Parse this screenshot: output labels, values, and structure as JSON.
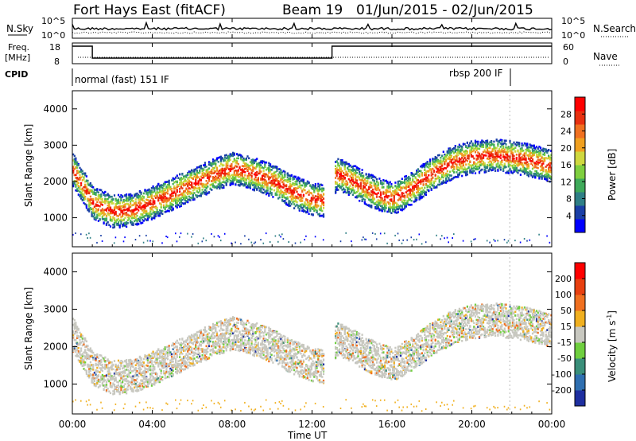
{
  "header": {
    "station": "Fort Hays East (fitACF)",
    "beam": "Beam 19",
    "date_range": "01/Jun/2015 - 02/Jun/2015"
  },
  "noise_panel": {
    "left_label": "N.Sky",
    "right_label": "N.Search",
    "left_ticks": [
      "10^5",
      "10^0"
    ],
    "right_ticks": [
      "10^5",
      "10^0"
    ]
  },
  "freq_panel": {
    "left_label_line1": "Freq.",
    "left_label_line2": "[MHz]",
    "left_ticks": [
      "18",
      "8"
    ],
    "right_label": "Nave",
    "right_ticks": [
      "60",
      "0"
    ]
  },
  "cpid": {
    "label": "CPID",
    "modes": [
      {
        "text": "normal (fast) 151 IF",
        "start_hour": 0,
        "end_hour": 21.9
      },
      {
        "text": "rbsp 200 IF",
        "start_hour": 21.9,
        "end_hour": 24
      }
    ]
  },
  "time_axis": {
    "label": "Time UT",
    "ticks": [
      "00:00",
      "04:00",
      "08:00",
      "12:00",
      "16:00",
      "20:00",
      "00:00"
    ]
  },
  "power_panel": {
    "ylabel": "Slant Range [km]",
    "yticks": [
      "4000",
      "3000",
      "2000",
      "1000"
    ],
    "colorbar_label": "Power [dB]",
    "colorbar_ticks": [
      "28",
      "24",
      "20",
      "16",
      "12",
      "8",
      "4"
    ],
    "colors": [
      "#0000ff",
      "#1a3fa6",
      "#2f7f86",
      "#3faa5a",
      "#7fcf3f",
      "#cfd83f",
      "#f0a020",
      "#f07020",
      "#e83010",
      "#ff0000"
    ]
  },
  "velocity_panel": {
    "ylabel": "Slant Range [km]",
    "yticks": [
      "4000",
      "3000",
      "2000",
      "1000"
    ],
    "colorbar_label_main": "Velocity [m s",
    "colorbar_label_sup": "-1",
    "colorbar_label_end": "]",
    "colorbar_ticks": [
      "200",
      "100",
      "50",
      "15",
      "-15",
      "-50",
      "-100",
      "-200"
    ],
    "colors": [
      "#1e2fa0",
      "#2f6fb0",
      "#3a8f7a",
      "#6fcf3f",
      "#c8c8c0",
      "#f0b020",
      "#f07020",
      "#e84010",
      "#ff0000"
    ]
  },
  "chart_data": [
    {
      "type": "heatmap",
      "title": "Power",
      "xlabel": "Time UT",
      "ylabel": "Slant Range [km]",
      "xlim": [
        0,
        24
      ],
      "ylim": [
        200,
        4500
      ],
      "zlabel": "Power [dB]",
      "zlim": [
        0,
        30
      ],
      "backscatter_band": {
        "hours": [
          0,
          1,
          2,
          3,
          4,
          5,
          6,
          7,
          8,
          9,
          10,
          11,
          12,
          12.6,
          13.2,
          14,
          15,
          16,
          17,
          18,
          19,
          20,
          21,
          22,
          23,
          24
        ],
        "center_km": [
          2300,
          1400,
          1150,
          1200,
          1400,
          1650,
          1900,
          2150,
          2350,
          2200,
          2000,
          1700,
          1500,
          1450,
          2200,
          2000,
          1700,
          1500,
          1800,
          2200,
          2500,
          2650,
          2700,
          2650,
          2550,
          2400
        ]
      }
    },
    {
      "type": "heatmap",
      "title": "Velocity",
      "xlabel": "Time UT",
      "ylabel": "Slant Range [km]",
      "xlim": [
        0,
        24
      ],
      "ylim": [
        200,
        4500
      ],
      "zlabel": "Velocity [m s-1]",
      "zlim": [
        -200,
        200
      ]
    }
  ]
}
